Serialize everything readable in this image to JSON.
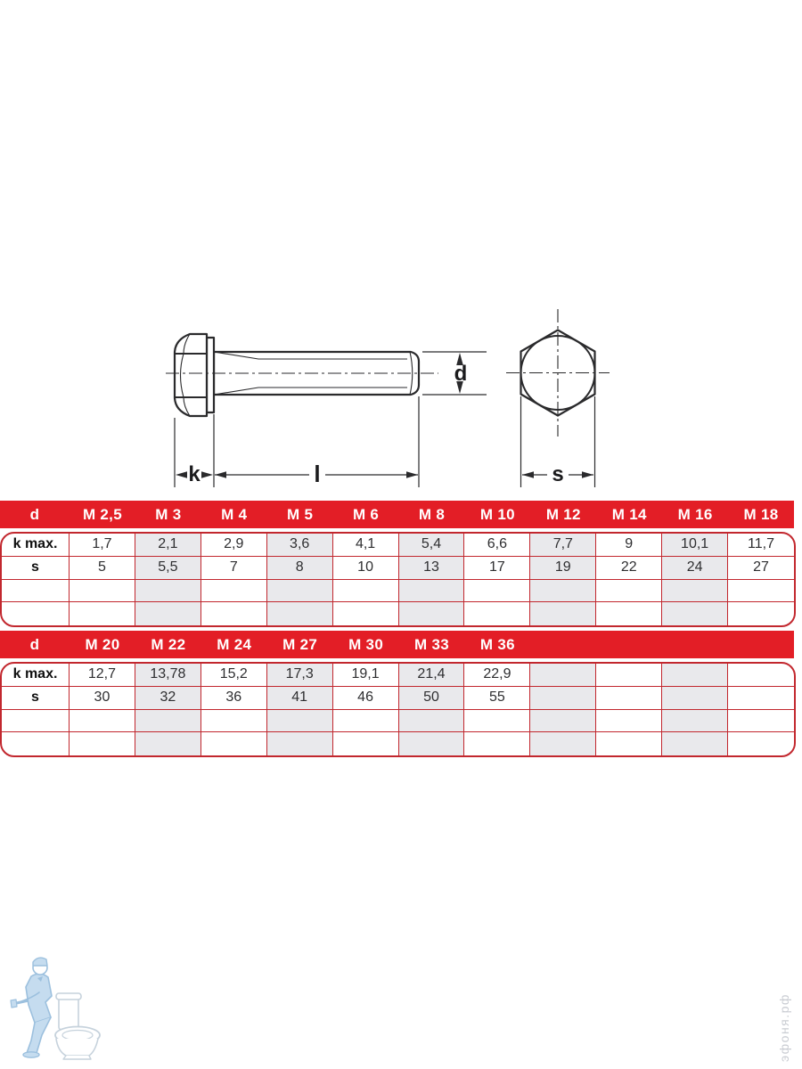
{
  "drawing": {
    "labels": {
      "head_height": "k",
      "length": "l",
      "diameter": "d",
      "width_across_flats": "s"
    }
  },
  "tables": [
    {
      "header": [
        "d",
        "M 2,5",
        "M 3",
        "M 4",
        "M 5",
        "M 6",
        "M 8",
        "M 10",
        "M 12",
        "M 14",
        "M 16",
        "M 18"
      ],
      "rows": [
        {
          "label": "k max.",
          "values": [
            "1,7",
            "2,1",
            "2,9",
            "3,6",
            "4,1",
            "5,4",
            "6,6",
            "7,7",
            "9",
            "10,1",
            "11,7"
          ]
        },
        {
          "label": "s",
          "values": [
            "5",
            "5,5",
            "7",
            "8",
            "10",
            "13",
            "17",
            "19",
            "22",
            "24",
            "27"
          ]
        },
        {
          "label": "",
          "values": [
            "",
            "",
            "",
            "",
            "",
            "",
            "",
            "",
            "",
            "",
            ""
          ]
        },
        {
          "label": "",
          "values": [
            "",
            "",
            "",
            "",
            "",
            "",
            "",
            "",
            "",
            "",
            ""
          ]
        }
      ]
    },
    {
      "header": [
        "d",
        "M 20",
        "M 22",
        "M 24",
        "M 27",
        "M 30",
        "M 33",
        "M 36",
        "",
        "",
        "",
        ""
      ],
      "rows": [
        {
          "label": "k max.",
          "values": [
            "12,7",
            "13,78",
            "15,2",
            "17,3",
            "19,1",
            "21,4",
            "22,9",
            "",
            "",
            "",
            ""
          ]
        },
        {
          "label": "s",
          "values": [
            "30",
            "32",
            "36",
            "41",
            "46",
            "50",
            "55",
            "",
            "",
            "",
            ""
          ]
        },
        {
          "label": "",
          "values": [
            "",
            "",
            "",
            "",
            "",
            "",
            "",
            "",
            "",
            "",
            ""
          ]
        },
        {
          "label": "",
          "values": [
            "",
            "",
            "",
            "",
            "",
            "",
            "",
            "",
            "",
            "",
            ""
          ]
        }
      ]
    }
  ],
  "watermark": {
    "site_text": "эфоня.рф"
  },
  "logo": {
    "name": "plumber-with-toilet"
  },
  "colors": {
    "header_red": "#e31e26",
    "grid_red": "#c2272e",
    "alt_column_gray": "#e9e9ec",
    "drawing_line": "#2a2a2c",
    "watermark_gray": "#c9ccd2",
    "logo_blue": "#9cc0de",
    "logo_fill": "#c5dcef",
    "toilet_line": "#c6d2dc"
  }
}
